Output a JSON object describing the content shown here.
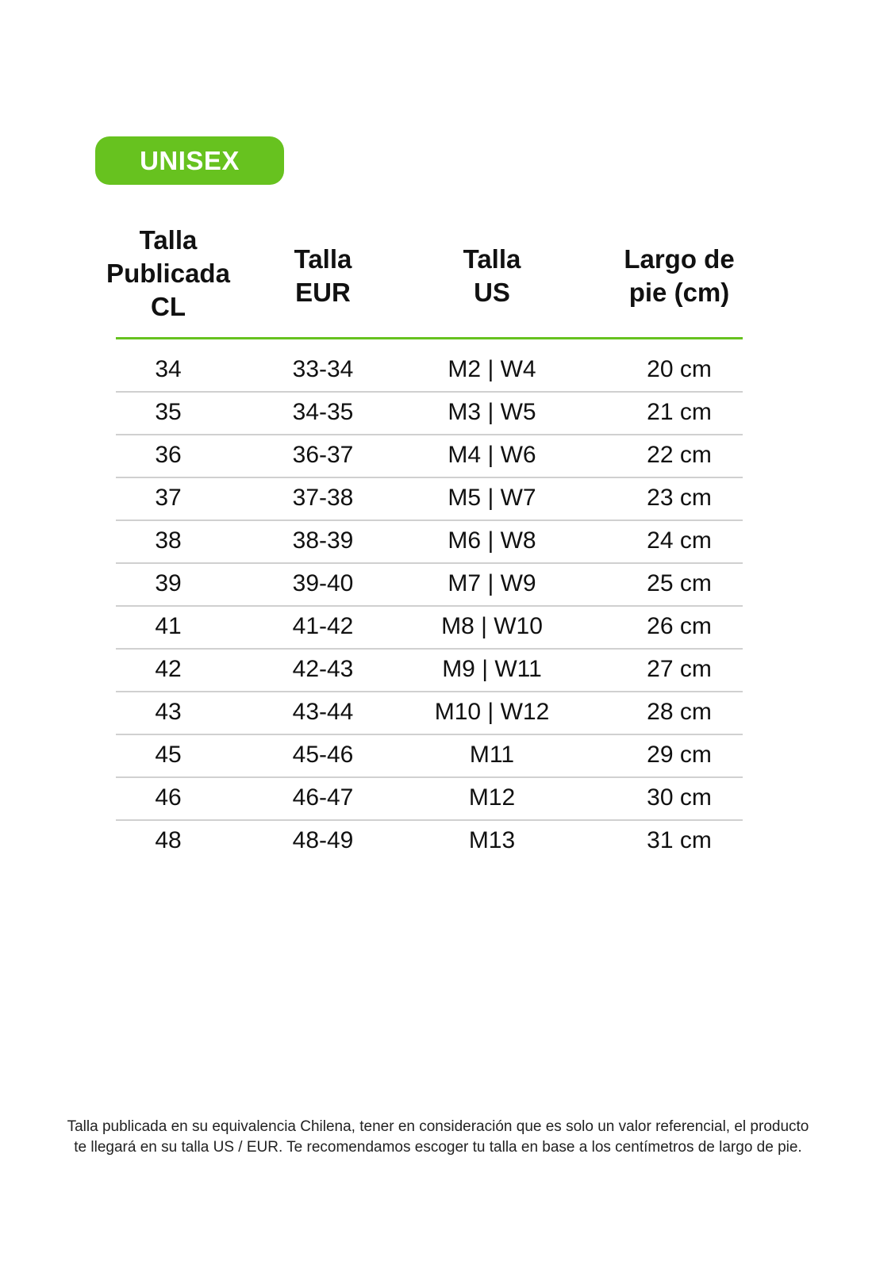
{
  "badge": "UNISEX",
  "colors": {
    "accent": "#67c21f"
  },
  "headers": [
    [
      "Talla",
      "Publicada",
      "CL"
    ],
    [
      "Talla",
      "EUR"
    ],
    [
      "Talla",
      "US"
    ],
    [
      "Largo de",
      "pie (cm)"
    ]
  ],
  "rows": [
    [
      "34",
      "33-34",
      "M2 | W4",
      "20 cm"
    ],
    [
      "35",
      "34-35",
      "M3 | W5",
      "21 cm"
    ],
    [
      "36",
      "36-37",
      "M4 | W6",
      "22 cm"
    ],
    [
      "37",
      "37-38",
      "M5 | W7",
      "23 cm"
    ],
    [
      "38",
      "38-39",
      "M6 | W8",
      "24 cm"
    ],
    [
      "39",
      "39-40",
      "M7 | W9",
      "25 cm"
    ],
    [
      "41",
      "41-42",
      "M8 | W10",
      "26 cm"
    ],
    [
      "42",
      "42-43",
      "M9 | W11",
      "27 cm"
    ],
    [
      "43",
      "43-44",
      "M10 | W12",
      "28 cm"
    ],
    [
      "45",
      "45-46",
      "M11",
      "29 cm"
    ],
    [
      "46",
      "46-47",
      "M12",
      "30 cm"
    ],
    [
      "48",
      "48-49",
      "M13",
      "31 cm"
    ]
  ],
  "note": [
    "Talla publicada en su equivalencia Chilena, tener en consideración que es solo un valor referencial, el producto",
    "te llegará en su talla US / EUR. Te recomendamos escoger tu talla en base a los centímetros de largo de pie."
  ]
}
